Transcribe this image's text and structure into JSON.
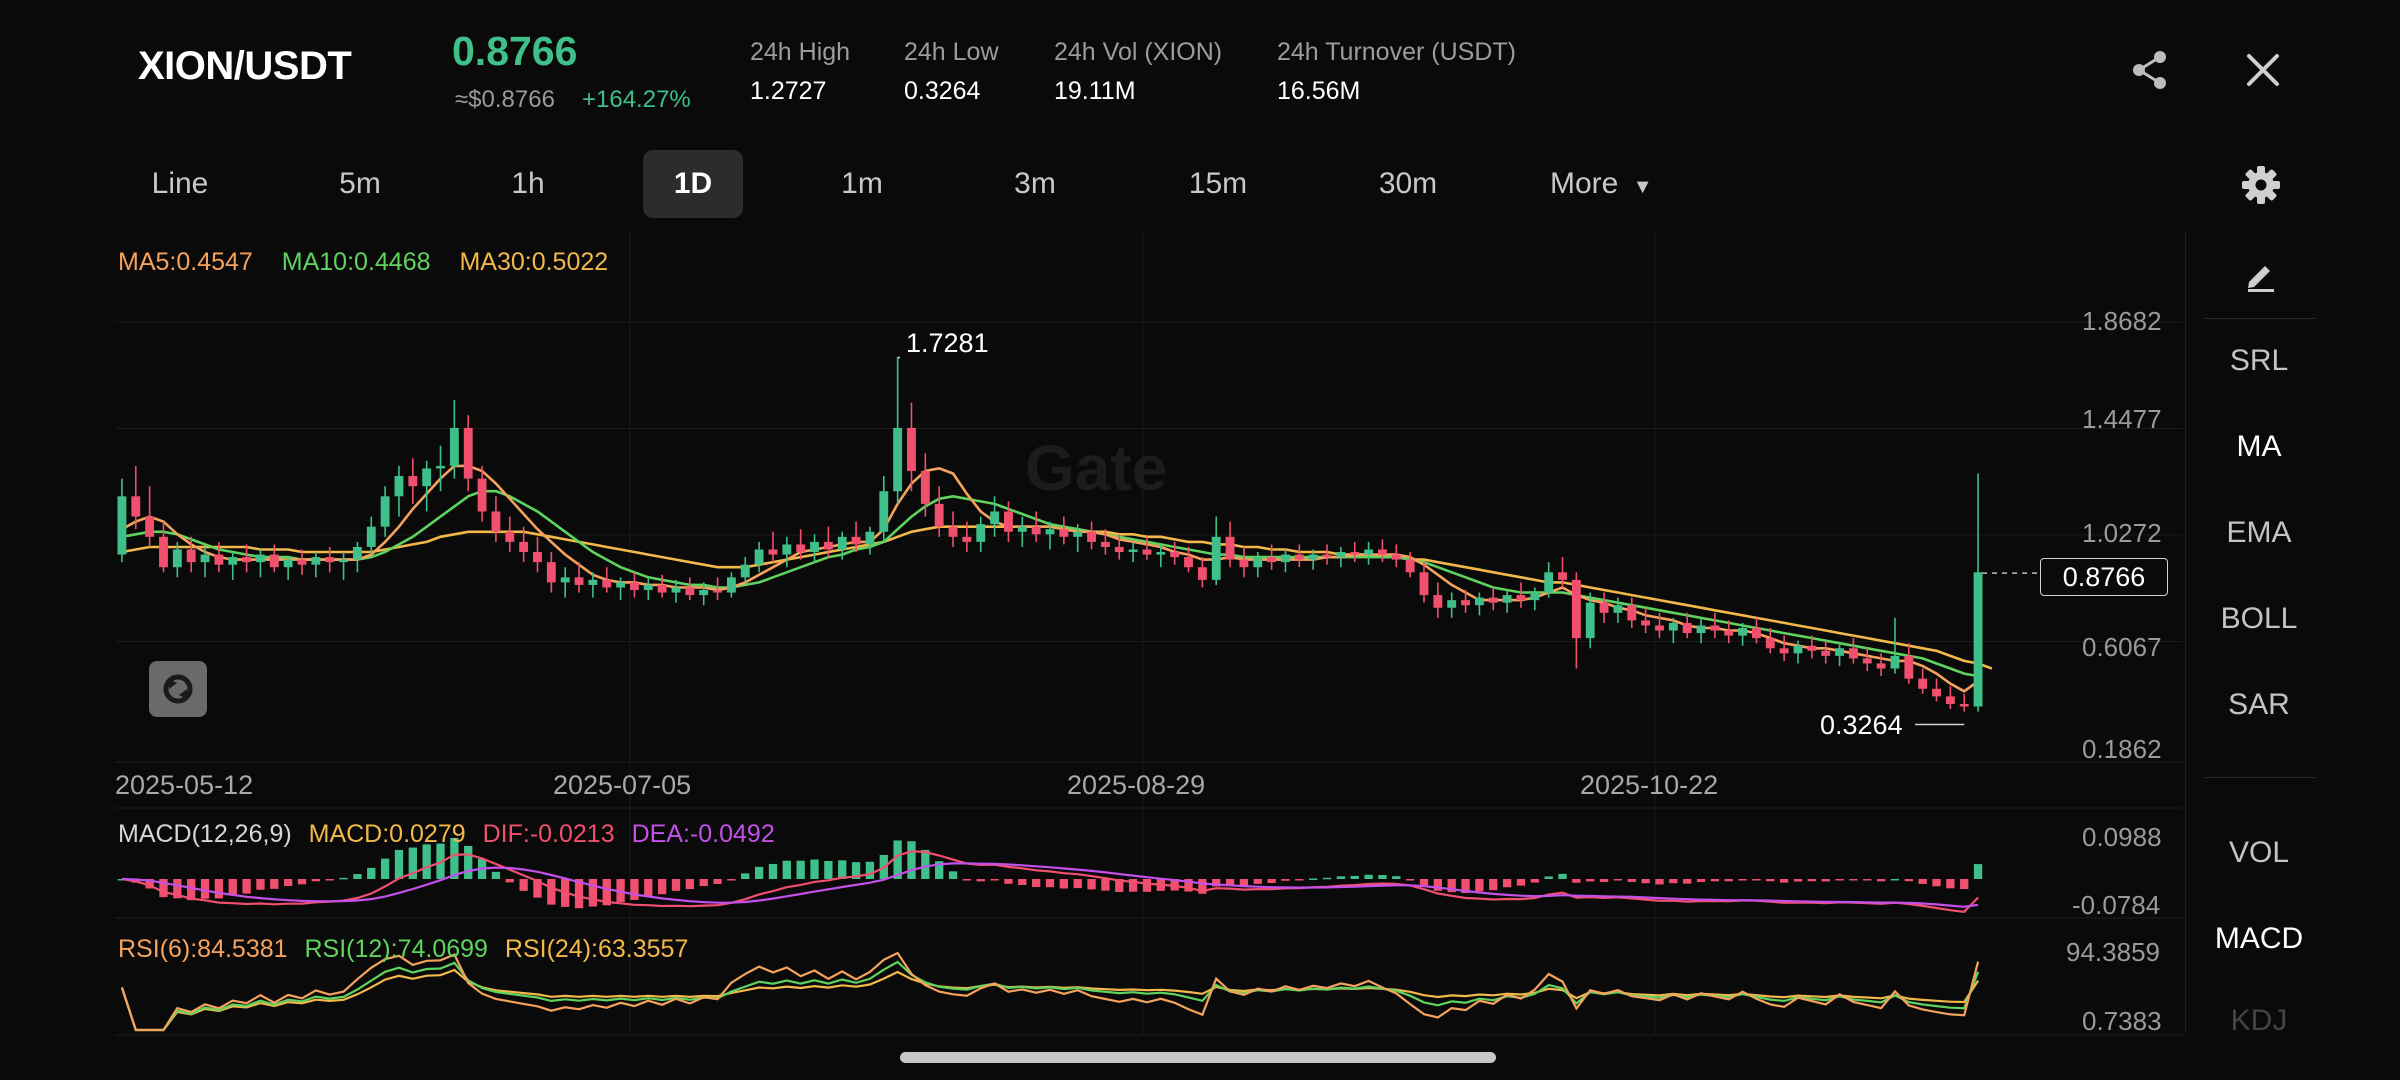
{
  "header": {
    "pair": "XION/USDT",
    "price": "0.8766",
    "price_usd": "≈$0.8766",
    "change": "+164.27%",
    "stats": [
      {
        "label": "24h High",
        "value": "1.2727"
      },
      {
        "label": "24h Low",
        "value": "0.3264"
      },
      {
        "label": "24h Vol (XION)",
        "value": "19.11M"
      },
      {
        "label": "24h Turnover (USDT)",
        "value": "16.56M"
      }
    ],
    "icons": {
      "share": "share-icon",
      "close": "close-icon"
    }
  },
  "tabs": [
    "Line",
    "5m",
    "1h",
    "1D",
    "1m",
    "3m",
    "15m",
    "30m",
    "More"
  ],
  "active_tab": "1D",
  "watermark": "Gate",
  "ma_legend": {
    "ma5": "MA5:0.4547",
    "ma10": "MA10:0.4468",
    "ma30": "MA30:0.5022"
  },
  "price_axis": [
    "1.8682",
    "1.4477",
    "1.0272",
    "0.6067",
    "0.1862"
  ],
  "current_price_tag": "0.8766",
  "annotations": {
    "high": "1.7281",
    "low": "0.3264"
  },
  "dates": [
    "2025-05-12",
    "2025-07-05",
    "2025-08-29",
    "2025-10-22"
  ],
  "macd_legend": {
    "name": "MACD(12,26,9)",
    "macd": "MACD:0.0279",
    "dif": "DIF:-0.0213",
    "dea": "DEA:-0.0492"
  },
  "macd_axis": [
    "0.0988",
    "-0.0784"
  ],
  "rsi_legend": {
    "r6": "RSI(6):84.5381",
    "r12": "RSI(12):74.0699",
    "r24": "RSI(24):63.3557"
  },
  "rsi_axis": [
    "94.3859",
    "0.7383"
  ],
  "side_panel": {
    "main": [
      "SRL",
      "MA",
      "EMA",
      "BOLL",
      "SAR"
    ],
    "main_active": "MA",
    "sub": [
      "VOL",
      "MACD",
      "KDJ"
    ],
    "sub_active": "MACD"
  },
  "colors": {
    "up": "#3fbf8a",
    "down": "#f0506e",
    "ma5": "#f5a25d",
    "ma10": "#5fd35f",
    "ma30": "#f2b94a",
    "dif": "#f0506e",
    "dea": "#c350e8"
  },
  "chart_data": {
    "type": "candlestick",
    "interval": "1D",
    "price_range": [
      0.1862,
      1.8682
    ],
    "annotated_high": 1.7281,
    "annotated_low": 0.3264,
    "last_price": 0.8766,
    "x_ticks": [
      "2025-05-12",
      "2025-07-05",
      "2025-08-29",
      "2025-10-22"
    ],
    "candles": [
      [
        0.95,
        1.25,
        0.92,
        1.18
      ],
      [
        1.18,
        1.3,
        1.05,
        1.1
      ],
      [
        1.1,
        1.22,
        0.98,
        1.02
      ],
      [
        1.02,
        1.08,
        0.88,
        0.9
      ],
      [
        0.9,
        1.0,
        0.86,
        0.97
      ],
      [
        0.97,
        1.02,
        0.88,
        0.92
      ],
      [
        0.92,
        0.98,
        0.86,
        0.95
      ],
      [
        0.95,
        1.0,
        0.88,
        0.91
      ],
      [
        0.91,
        0.96,
        0.85,
        0.94
      ],
      [
        0.94,
        0.99,
        0.88,
        0.92
      ],
      [
        0.92,
        0.97,
        0.86,
        0.95
      ],
      [
        0.95,
        0.99,
        0.88,
        0.9
      ],
      [
        0.9,
        0.94,
        0.85,
        0.93
      ],
      [
        0.93,
        0.97,
        0.87,
        0.91
      ],
      [
        0.91,
        0.96,
        0.86,
        0.94
      ],
      [
        0.94,
        0.98,
        0.88,
        0.92
      ],
      [
        0.92,
        0.96,
        0.85,
        0.93
      ],
      [
        0.93,
        1.0,
        0.88,
        0.98
      ],
      [
        0.98,
        1.1,
        0.95,
        1.06
      ],
      [
        1.06,
        1.22,
        1.02,
        1.18
      ],
      [
        1.18,
        1.3,
        1.1,
        1.26
      ],
      [
        1.26,
        1.33,
        1.15,
        1.22
      ],
      [
        1.22,
        1.32,
        1.12,
        1.29
      ],
      [
        1.29,
        1.38,
        1.2,
        1.3
      ],
      [
        1.3,
        1.56,
        1.25,
        1.45
      ],
      [
        1.45,
        1.5,
        1.2,
        1.25
      ],
      [
        1.25,
        1.3,
        1.08,
        1.12
      ],
      [
        1.12,
        1.18,
        1.0,
        1.04
      ],
      [
        1.04,
        1.1,
        0.96,
        1.0
      ],
      [
        1.0,
        1.06,
        0.92,
        0.96
      ],
      [
        0.96,
        1.02,
        0.88,
        0.92
      ],
      [
        0.92,
        0.96,
        0.8,
        0.84
      ],
      [
        0.84,
        0.9,
        0.78,
        0.86
      ],
      [
        0.86,
        0.92,
        0.8,
        0.83
      ],
      [
        0.83,
        0.88,
        0.78,
        0.85
      ],
      [
        0.85,
        0.9,
        0.8,
        0.82
      ],
      [
        0.82,
        0.86,
        0.77,
        0.84
      ],
      [
        0.84,
        0.88,
        0.78,
        0.81
      ],
      [
        0.81,
        0.86,
        0.77,
        0.83
      ],
      [
        0.83,
        0.87,
        0.78,
        0.8
      ],
      [
        0.8,
        0.85,
        0.76,
        0.82
      ],
      [
        0.82,
        0.86,
        0.77,
        0.79
      ],
      [
        0.79,
        0.84,
        0.75,
        0.81
      ],
      [
        0.81,
        0.86,
        0.77,
        0.8
      ],
      [
        0.8,
        0.88,
        0.78,
        0.86
      ],
      [
        0.86,
        0.94,
        0.84,
        0.91
      ],
      [
        0.91,
        1.0,
        0.88,
        0.97
      ],
      [
        0.97,
        1.04,
        0.92,
        0.95
      ],
      [
        0.95,
        1.02,
        0.9,
        0.99
      ],
      [
        0.99,
        1.05,
        0.93,
        0.96
      ],
      [
        0.96,
        1.03,
        0.92,
        1.0
      ],
      [
        1.0,
        1.06,
        0.94,
        0.97
      ],
      [
        0.97,
        1.04,
        0.93,
        1.02
      ],
      [
        1.02,
        1.08,
        0.96,
        0.99
      ],
      [
        0.99,
        1.06,
        0.95,
        1.04
      ],
      [
        1.04,
        1.26,
        1.0,
        1.2
      ],
      [
        1.2,
        1.73,
        1.15,
        1.45
      ],
      [
        1.45,
        1.55,
        1.2,
        1.28
      ],
      [
        1.28,
        1.35,
        1.1,
        1.15
      ],
      [
        1.15,
        1.22,
        1.02,
        1.06
      ],
      [
        1.06,
        1.12,
        0.98,
        1.02
      ],
      [
        1.02,
        1.08,
        0.96,
        1.0
      ],
      [
        1.0,
        1.1,
        0.96,
        1.07
      ],
      [
        1.07,
        1.18,
        1.02,
        1.12
      ],
      [
        1.12,
        1.16,
        1.0,
        1.04
      ],
      [
        1.04,
        1.1,
        0.98,
        1.06
      ],
      [
        1.06,
        1.12,
        1.0,
        1.03
      ],
      [
        1.03,
        1.08,
        0.97,
        1.05
      ],
      [
        1.05,
        1.1,
        0.99,
        1.02
      ],
      [
        1.02,
        1.07,
        0.96,
        1.04
      ],
      [
        1.04,
        1.08,
        0.97,
        1.0
      ],
      [
        1.0,
        1.05,
        0.95,
        0.98
      ],
      [
        0.98,
        1.03,
        0.93,
        0.96
      ],
      [
        0.96,
        1.0,
        0.92,
        0.97
      ],
      [
        0.97,
        1.02,
        0.93,
        0.95
      ],
      [
        0.95,
        0.99,
        0.9,
        0.96
      ],
      [
        0.96,
        1.0,
        0.91,
        0.94
      ],
      [
        0.94,
        0.98,
        0.88,
        0.9
      ],
      [
        0.9,
        0.94,
        0.82,
        0.85
      ],
      [
        0.85,
        1.1,
        0.83,
        1.02
      ],
      [
        1.02,
        1.08,
        0.9,
        0.93
      ],
      [
        0.93,
        0.98,
        0.86,
        0.9
      ],
      [
        0.9,
        0.96,
        0.86,
        0.94
      ],
      [
        0.94,
        0.99,
        0.89,
        0.92
      ],
      [
        0.92,
        0.97,
        0.88,
        0.95
      ],
      [
        0.95,
        0.99,
        0.9,
        0.93
      ],
      [
        0.93,
        0.97,
        0.89,
        0.95
      ],
      [
        0.95,
        0.99,
        0.91,
        0.94
      ],
      [
        0.94,
        0.98,
        0.9,
        0.96
      ],
      [
        0.96,
        1.0,
        0.92,
        0.95
      ],
      [
        0.95,
        1.0,
        0.91,
        0.97
      ],
      [
        0.97,
        1.01,
        0.92,
        0.95
      ],
      [
        0.95,
        0.99,
        0.9,
        0.93
      ],
      [
        0.93,
        0.96,
        0.86,
        0.88
      ],
      [
        0.88,
        0.92,
        0.76,
        0.79
      ],
      [
        0.79,
        0.84,
        0.7,
        0.74
      ],
      [
        0.74,
        0.8,
        0.7,
        0.77
      ],
      [
        0.77,
        0.81,
        0.72,
        0.75
      ],
      [
        0.75,
        0.8,
        0.71,
        0.78
      ],
      [
        0.78,
        0.82,
        0.73,
        0.76
      ],
      [
        0.76,
        0.81,
        0.72,
        0.79
      ],
      [
        0.79,
        0.84,
        0.74,
        0.77
      ],
      [
        0.77,
        0.82,
        0.73,
        0.8
      ],
      [
        0.8,
        0.92,
        0.78,
        0.88
      ],
      [
        0.88,
        0.94,
        0.82,
        0.85
      ],
      [
        0.85,
        0.88,
        0.5,
        0.62
      ],
      [
        0.62,
        0.8,
        0.58,
        0.76
      ],
      [
        0.76,
        0.8,
        0.68,
        0.72
      ],
      [
        0.72,
        0.78,
        0.68,
        0.75
      ],
      [
        0.75,
        0.78,
        0.66,
        0.69
      ],
      [
        0.69,
        0.74,
        0.64,
        0.67
      ],
      [
        0.67,
        0.72,
        0.62,
        0.65
      ],
      [
        0.65,
        0.7,
        0.6,
        0.68
      ],
      [
        0.68,
        0.72,
        0.62,
        0.64
      ],
      [
        0.64,
        0.7,
        0.6,
        0.67
      ],
      [
        0.67,
        0.72,
        0.62,
        0.65
      ],
      [
        0.65,
        0.69,
        0.6,
        0.63
      ],
      [
        0.63,
        0.68,
        0.59,
        0.66
      ],
      [
        0.66,
        0.7,
        0.6,
        0.62
      ],
      [
        0.62,
        0.66,
        0.56,
        0.58
      ],
      [
        0.58,
        0.63,
        0.53,
        0.56
      ],
      [
        0.56,
        0.61,
        0.52,
        0.59
      ],
      [
        0.59,
        0.63,
        0.54,
        0.57
      ],
      [
        0.57,
        0.61,
        0.52,
        0.55
      ],
      [
        0.55,
        0.6,
        0.51,
        0.58
      ],
      [
        0.58,
        0.62,
        0.52,
        0.54
      ],
      [
        0.54,
        0.58,
        0.49,
        0.52
      ],
      [
        0.52,
        0.56,
        0.47,
        0.5
      ],
      [
        0.5,
        0.7,
        0.48,
        0.55
      ],
      [
        0.55,
        0.6,
        0.44,
        0.46
      ],
      [
        0.46,
        0.5,
        0.4,
        0.42
      ],
      [
        0.42,
        0.46,
        0.37,
        0.39
      ],
      [
        0.39,
        0.43,
        0.34,
        0.36
      ],
      [
        0.36,
        0.4,
        0.33,
        0.35
      ],
      [
        0.35,
        1.27,
        0.33,
        0.88
      ]
    ],
    "ma5": [
      1.05,
      1.08,
      1.1,
      1.08,
      1.03,
      0.99,
      0.96,
      0.94,
      0.93,
      0.93,
      0.93,
      0.93,
      0.93,
      0.93,
      0.93,
      0.93,
      0.93,
      0.93,
      0.95,
      1.0,
      1.06,
      1.13,
      1.19,
      1.25,
      1.3,
      1.3,
      1.28,
      1.23,
      1.17,
      1.11,
      1.05,
      1.0,
      0.95,
      0.91,
      0.87,
      0.85,
      0.84,
      0.84,
      0.83,
      0.83,
      0.82,
      0.82,
      0.82,
      0.81,
      0.82,
      0.84,
      0.87,
      0.9,
      0.93,
      0.96,
      0.97,
      0.98,
      0.99,
      1.0,
      1.0,
      1.05,
      1.15,
      1.23,
      1.28,
      1.29,
      1.27,
      1.19,
      1.12,
      1.08,
      1.06,
      1.06,
      1.06,
      1.06,
      1.05,
      1.04,
      1.04,
      1.03,
      1.01,
      1.0,
      0.99,
      0.98,
      0.96,
      0.95,
      0.93,
      0.93,
      0.94,
      0.93,
      0.93,
      0.93,
      0.93,
      0.93,
      0.93,
      0.94,
      0.94,
      0.95,
      0.95,
      0.95,
      0.95,
      0.94,
      0.91,
      0.87,
      0.83,
      0.8,
      0.77,
      0.77,
      0.77,
      0.77,
      0.78,
      0.8,
      0.82,
      0.79,
      0.77,
      0.76,
      0.74,
      0.73,
      0.71,
      0.7,
      0.69,
      0.67,
      0.66,
      0.66,
      0.65,
      0.65,
      0.64,
      0.62,
      0.6,
      0.59,
      0.58,
      0.58,
      0.57,
      0.56,
      0.55,
      0.54,
      0.53,
      0.53,
      0.51,
      0.48,
      0.44,
      0.41,
      0.45
    ],
    "ma10": [
      1.02,
      1.03,
      1.04,
      1.04,
      1.03,
      1.01,
      0.99,
      0.97,
      0.96,
      0.95,
      0.94,
      0.94,
      0.94,
      0.93,
      0.93,
      0.93,
      0.93,
      0.93,
      0.94,
      0.96,
      0.99,
      1.02,
      1.06,
      1.1,
      1.14,
      1.18,
      1.2,
      1.2,
      1.18,
      1.15,
      1.12,
      1.08,
      1.04,
      1.0,
      0.96,
      0.93,
      0.9,
      0.88,
      0.86,
      0.85,
      0.84,
      0.83,
      0.83,
      0.82,
      0.82,
      0.83,
      0.84,
      0.86,
      0.88,
      0.9,
      0.92,
      0.94,
      0.95,
      0.97,
      0.98,
      1.0,
      1.05,
      1.1,
      1.14,
      1.17,
      1.18,
      1.17,
      1.16,
      1.15,
      1.13,
      1.11,
      1.09,
      1.07,
      1.06,
      1.05,
      1.04,
      1.03,
      1.02,
      1.01,
      1.0,
      0.99,
      0.98,
      0.97,
      0.96,
      0.95,
      0.95,
      0.94,
      0.94,
      0.94,
      0.94,
      0.94,
      0.94,
      0.94,
      0.94,
      0.94,
      0.94,
      0.94,
      0.94,
      0.93,
      0.92,
      0.9,
      0.88,
      0.86,
      0.84,
      0.82,
      0.81,
      0.8,
      0.8,
      0.8,
      0.8,
      0.79,
      0.78,
      0.77,
      0.76,
      0.75,
      0.74,
      0.73,
      0.72,
      0.71,
      0.7,
      0.69,
      0.68,
      0.67,
      0.66,
      0.65,
      0.64,
      0.63,
      0.62,
      0.61,
      0.6,
      0.59,
      0.58,
      0.57,
      0.56,
      0.55,
      0.54,
      0.52,
      0.5,
      0.48,
      0.47
    ],
    "ma30": [
      0.96,
      0.97,
      0.98,
      0.98,
      0.98,
      0.98,
      0.98,
      0.98,
      0.98,
      0.98,
      0.97,
      0.97,
      0.97,
      0.96,
      0.96,
      0.96,
      0.96,
      0.96,
      0.96,
      0.97,
      0.98,
      0.99,
      1.0,
      1.02,
      1.03,
      1.04,
      1.04,
      1.04,
      1.04,
      1.04,
      1.03,
      1.02,
      1.01,
      1.0,
      0.99,
      0.98,
      0.97,
      0.96,
      0.95,
      0.94,
      0.93,
      0.92,
      0.91,
      0.9,
      0.9,
      0.9,
      0.91,
      0.92,
      0.93,
      0.94,
      0.95,
      0.96,
      0.97,
      0.98,
      0.99,
      1.0,
      1.02,
      1.04,
      1.05,
      1.06,
      1.06,
      1.06,
      1.06,
      1.06,
      1.06,
      1.06,
      1.06,
      1.06,
      1.05,
      1.05,
      1.04,
      1.04,
      1.03,
      1.03,
      1.02,
      1.02,
      1.01,
      1.0,
      1.0,
      0.99,
      0.99,
      0.98,
      0.98,
      0.97,
      0.97,
      0.96,
      0.96,
      0.96,
      0.95,
      0.95,
      0.95,
      0.94,
      0.94,
      0.93,
      0.93,
      0.92,
      0.91,
      0.9,
      0.89,
      0.88,
      0.87,
      0.86,
      0.85,
      0.84,
      0.84,
      0.83,
      0.82,
      0.81,
      0.8,
      0.79,
      0.78,
      0.77,
      0.76,
      0.75,
      0.74,
      0.73,
      0.72,
      0.71,
      0.7,
      0.69,
      0.68,
      0.67,
      0.66,
      0.65,
      0.64,
      0.63,
      0.62,
      0.61,
      0.6,
      0.59,
      0.58,
      0.57,
      0.55,
      0.53,
      0.52,
      0.5
    ]
  }
}
